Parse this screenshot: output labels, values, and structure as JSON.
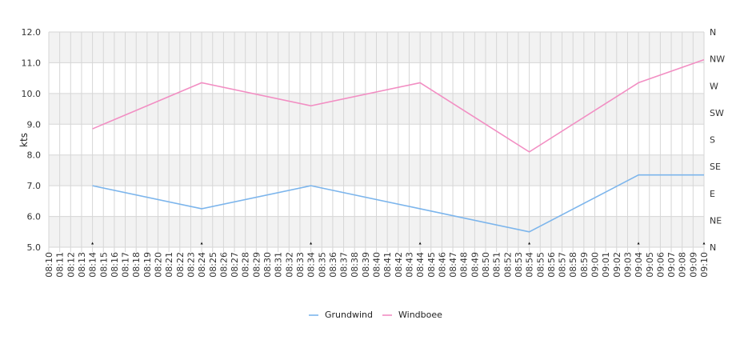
{
  "chart_data": {
    "type": "line",
    "ylabel": "kts",
    "ylim": [
      5,
      12
    ],
    "yticks": [
      "5.0",
      "6.0",
      "7.0",
      "8.0",
      "9.0",
      "10.0",
      "11.0",
      "12.0"
    ],
    "ytick_values": [
      5,
      6,
      7,
      8,
      9,
      10,
      11,
      12
    ],
    "y2ticks": [
      "N",
      "NE",
      "E",
      "SE",
      "S",
      "SW",
      "W",
      "NW",
      "N"
    ],
    "x": [
      "08:10",
      "08:11",
      "08:12",
      "08:13",
      "08:14",
      "08:15",
      "08:16",
      "08:17",
      "08:18",
      "08:19",
      "08:20",
      "08:21",
      "08:22",
      "08:23",
      "08:24",
      "08:25",
      "08:26",
      "08:27",
      "08:28",
      "08:29",
      "08:30",
      "08:31",
      "08:32",
      "08:33",
      "08:34",
      "08:35",
      "08:36",
      "08:37",
      "08:38",
      "08:39",
      "08:40",
      "08:41",
      "08:42",
      "08:43",
      "08:44",
      "08:45",
      "08:46",
      "08:47",
      "08:48",
      "08:49",
      "08:50",
      "08:51",
      "08:52",
      "08:53",
      "08:54",
      "08:55",
      "08:56",
      "08:57",
      "08:58",
      "08:59",
      "09:00",
      "09:01",
      "09:02",
      "09:03",
      "09:04",
      "09:05",
      "09:06",
      "09:07",
      "09:08",
      "09:09",
      "09:10"
    ],
    "grid": true,
    "legend_position": "bottom",
    "series": [
      {
        "name": "Grundwind",
        "color": "#7cb5ec",
        "points": [
          [
            "08:14",
            7.0
          ],
          [
            "08:24",
            6.25
          ],
          [
            "08:34",
            7.0
          ],
          [
            "08:44",
            6.25
          ],
          [
            "08:54",
            5.5
          ],
          [
            "09:04",
            7.35
          ],
          [
            "09:10",
            7.35
          ]
        ]
      },
      {
        "name": "Windboee",
        "color": "#f28ec3",
        "points": [
          [
            "08:14",
            8.85
          ],
          [
            "08:24",
            10.35
          ],
          [
            "08:34",
            9.6
          ],
          [
            "08:44",
            10.35
          ],
          [
            "08:54",
            8.1
          ],
          [
            "09:04",
            10.35
          ],
          [
            "09:10",
            11.1
          ]
        ]
      }
    ],
    "direction_markers": [
      {
        "x": "08:14",
        "dir": "N"
      },
      {
        "x": "08:24",
        "dir": "N"
      },
      {
        "x": "08:34",
        "dir": "N"
      },
      {
        "x": "08:44",
        "dir": "N"
      },
      {
        "x": "08:54",
        "dir": "N"
      },
      {
        "x": "09:04",
        "dir": "N"
      },
      {
        "x": "09:10",
        "dir": "N"
      }
    ]
  }
}
